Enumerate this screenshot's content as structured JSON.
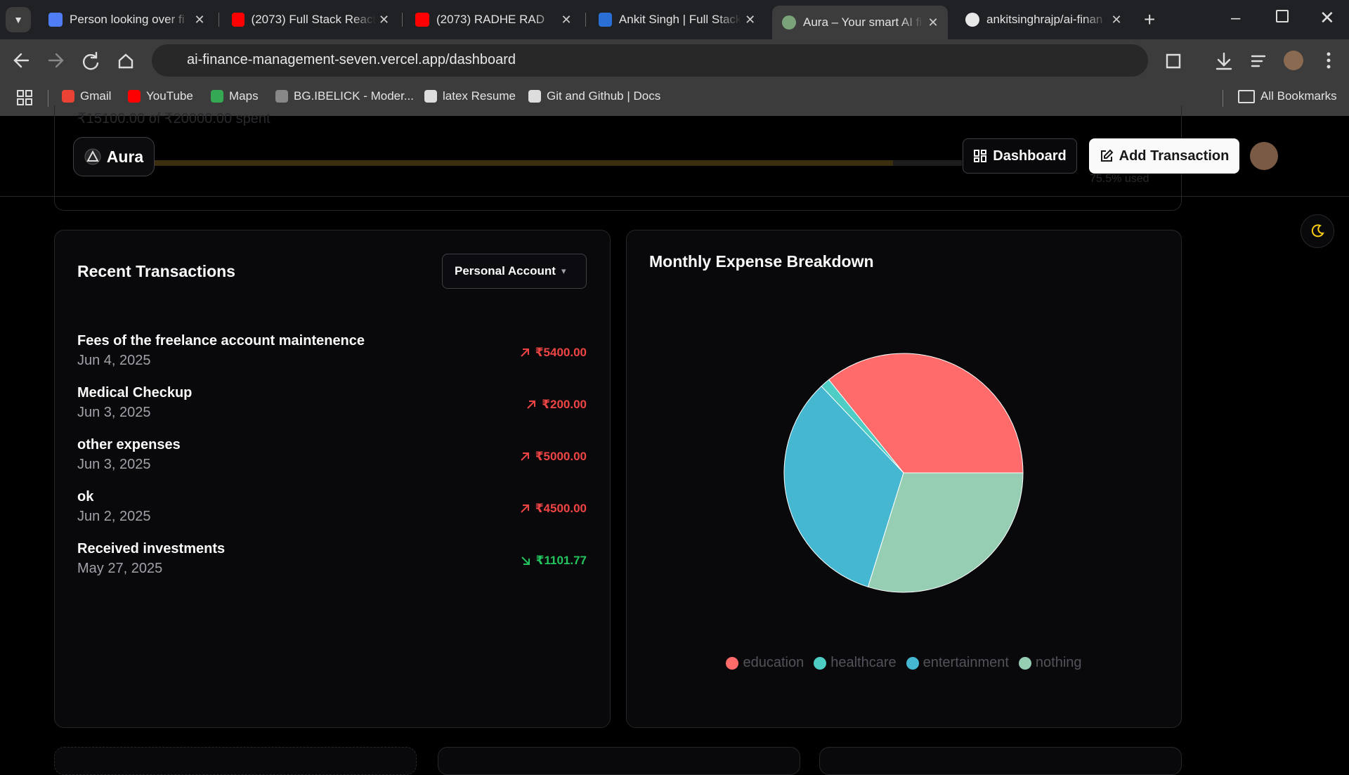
{
  "browser": {
    "tabs": [
      {
        "title": "Person looking over fi"
      },
      {
        "title": "(2073) Full Stack React"
      },
      {
        "title": "(2073) RADHE RAD"
      },
      {
        "title": "Ankit Singh | Full Stack"
      },
      {
        "title": "Aura – Your smart AI fi"
      },
      {
        "title": "ankitsinghrajp/ai-finan"
      }
    ],
    "url": "ai-finance-management-seven.vercel.app/dashboard",
    "bookmarks": [
      "Gmail",
      "YouTube",
      "Maps",
      "BG.IBELICK - Moder...",
      "latex Resume",
      "Git and Github | Docs"
    ],
    "all_bookmarks": "All Bookmarks"
  },
  "header": {
    "brand": "Aura",
    "nav": [
      "Dashboard",
      "Add Transaction"
    ]
  },
  "budget": {
    "spent_text": "₹15100.00 of ₹20000.00 spent",
    "used_text": "75.5% used"
  },
  "transactions": {
    "title": "Recent Transactions",
    "account_select": "Personal Account",
    "items": [
      {
        "description": "Fees of the freelance account maintenence",
        "date": "Jun 4, 2025",
        "amount": "₹5400.00",
        "direction": "expense"
      },
      {
        "description": "Medical Checkup",
        "date": "Jun 3, 2025",
        "amount": "₹200.00",
        "direction": "expense"
      },
      {
        "description": "other expenses",
        "date": "Jun 3, 2025",
        "amount": "₹5000.00",
        "direction": "expense"
      },
      {
        "description": "ok",
        "date": "Jun 2, 2025",
        "amount": "₹4500.00",
        "direction": "expense"
      },
      {
        "description": "Received investments",
        "date": "May 27, 2025",
        "amount": "₹1101.77",
        "direction": "income"
      }
    ]
  },
  "chart_data": {
    "type": "pie",
    "title": "Monthly Expense Breakdown",
    "categories": [
      "education",
      "healthcare",
      "entertainment",
      "nothing"
    ],
    "values": [
      5400,
      200,
      5000,
      4500
    ],
    "colors": [
      "#ff6b6b",
      "#4ecdc4",
      "#45b7d1",
      "#96ceb4"
    ],
    "legend": "bottom"
  }
}
